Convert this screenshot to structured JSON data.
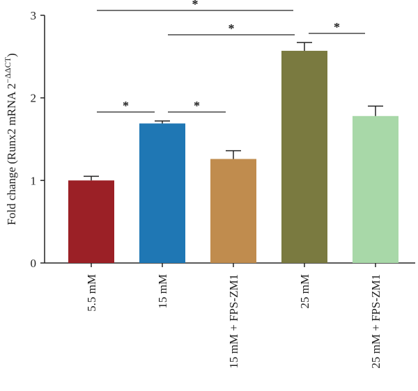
{
  "chart_data": {
    "type": "bar",
    "categories": [
      "5.5 mM",
      "15 mM",
      "15 mM + FPS-ZM1",
      "25 mM",
      "25 mM + FPS-ZM1"
    ],
    "values": [
      1.0,
      1.69,
      1.26,
      2.57,
      1.78
    ],
    "errors": [
      0.05,
      0.03,
      0.1,
      0.1,
      0.12
    ],
    "colors": [
      "#9b2026",
      "#1f77b4",
      "#c08c4e",
      "#7a7a40",
      "#a8d8a8"
    ],
    "ylabel_main": "Fold change (Runx2 mRNA 2",
    "ylabel_sup": "−ΔΔCT",
    "ylabel_end": ")",
    "ylim": [
      0,
      3
    ],
    "yticks": [
      "0",
      "1",
      "2",
      "3"
    ],
    "significance": [
      {
        "from": 0,
        "to": 1,
        "label": "*"
      },
      {
        "from": 1,
        "to": 2,
        "label": "*"
      },
      {
        "from": 1,
        "to": 3,
        "label": "*"
      },
      {
        "from": 3,
        "to": 4,
        "label": "*"
      },
      {
        "from": 0,
        "to": 3,
        "label": "*"
      }
    ]
  }
}
